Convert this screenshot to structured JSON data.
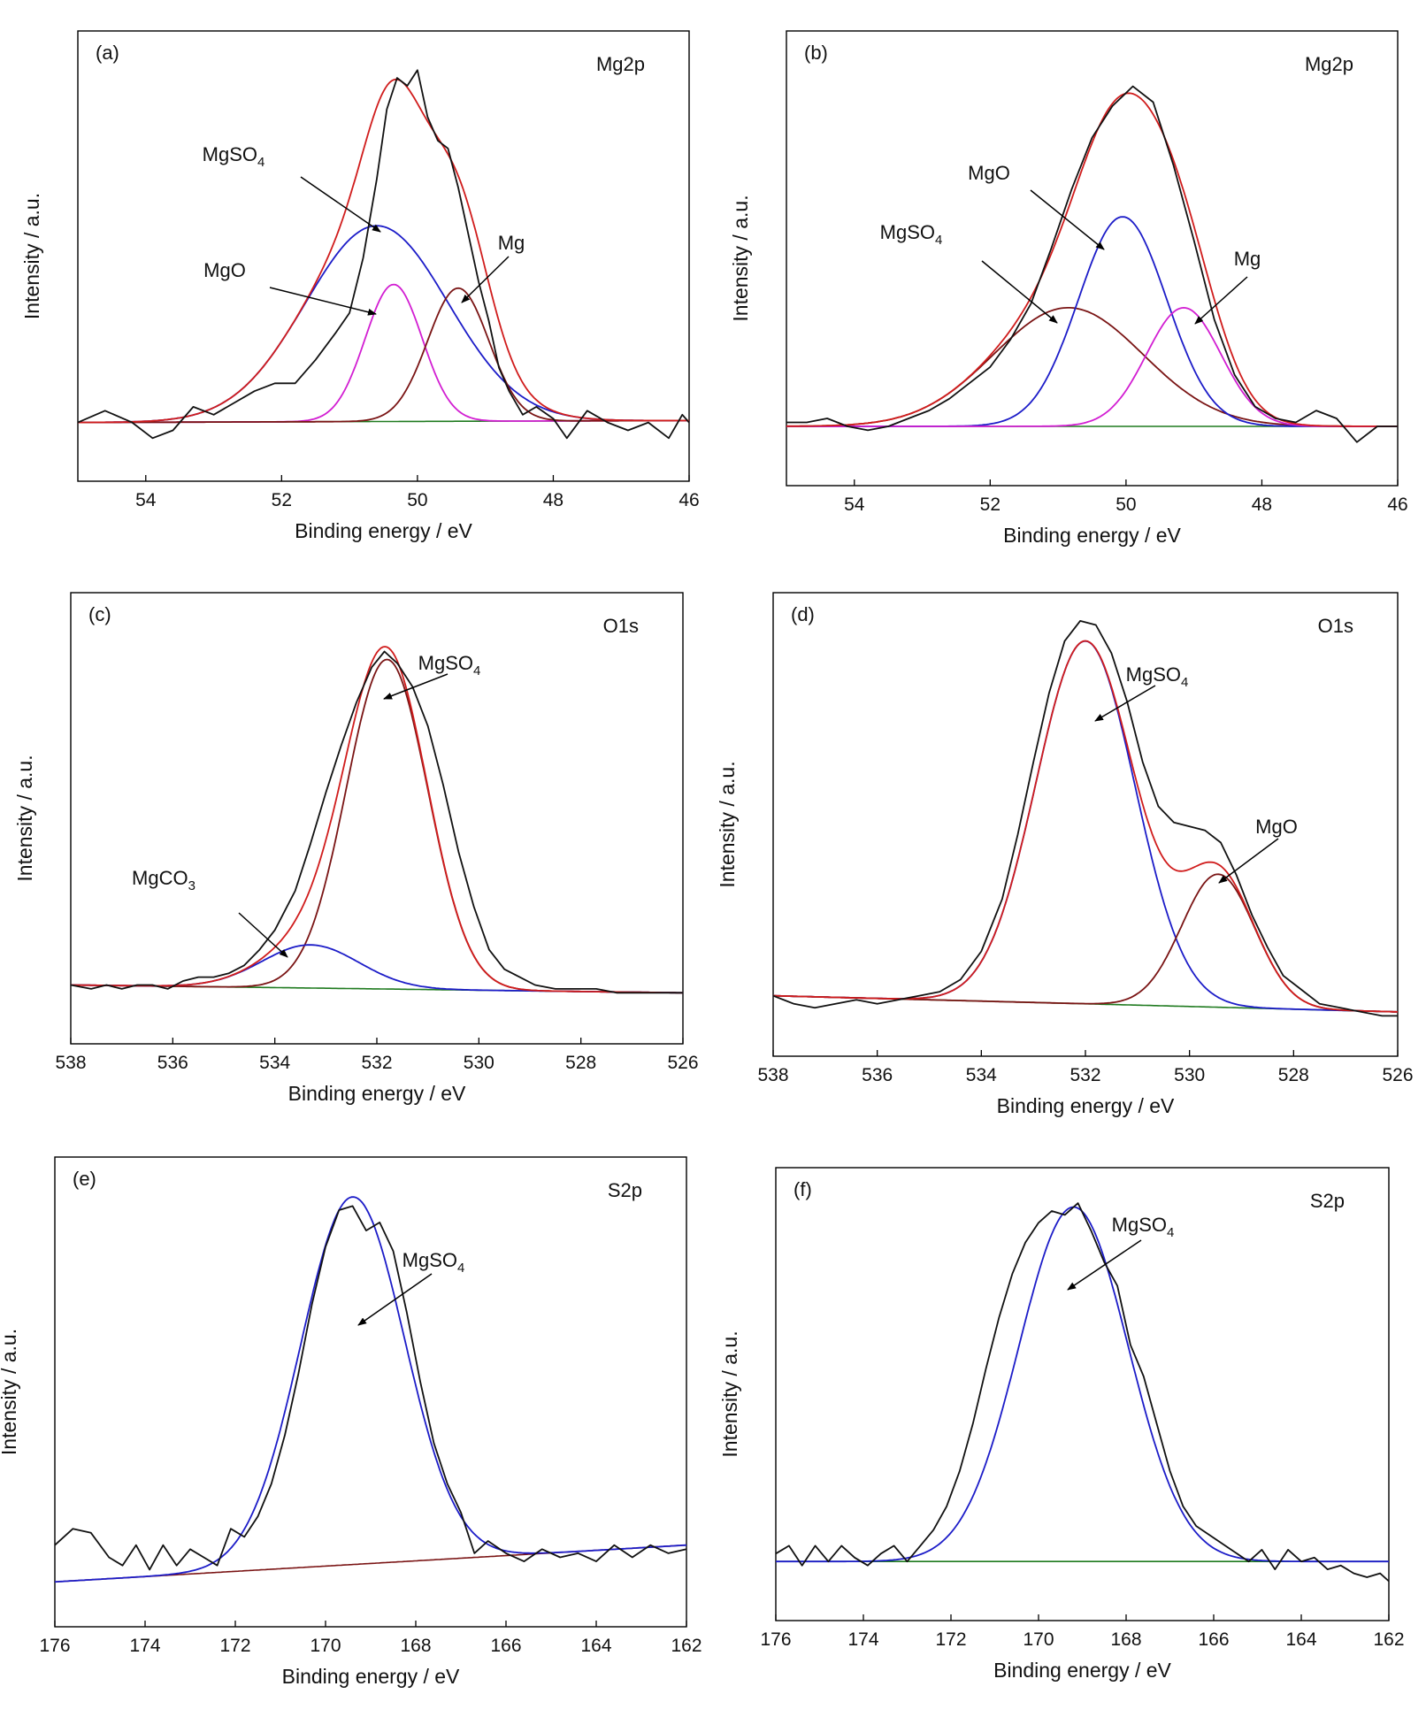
{
  "colors": {
    "raw": "#111111",
    "envelope": "#d01c1c",
    "blue": "#1c1cc8",
    "magenta": "#d21ed2",
    "brown": "#7a1414",
    "green": "#1f7a1f"
  },
  "chart_data": [
    {
      "id": "a",
      "type": "line",
      "panel_label": "(a)",
      "region": "Mg2p",
      "xlabel": "Binding energy / eV",
      "ylabel": "Intensity / a.u.",
      "xlim": [
        55,
        46
      ],
      "ylim": [
        -0.15,
        1.0
      ],
      "xticks": [
        54,
        52,
        50,
        48,
        46
      ],
      "components": [
        {
          "label": "MgSO",
          "label_sub": "4",
          "color": "blue",
          "center": 50.6,
          "height": 0.5,
          "sigma": 1.05
        },
        {
          "label": "MgO",
          "label_sub": "",
          "color": "magenta",
          "center": 50.35,
          "height": 0.35,
          "sigma": 0.42
        },
        {
          "label": "Mg",
          "label_sub": "",
          "color": "brown",
          "center": 49.4,
          "height": 0.34,
          "sigma": 0.45
        }
      ],
      "baseline": {
        "color": "green",
        "start": 0.0,
        "end": 0.005
      },
      "raw": [
        [
          55.0,
          0.0
        ],
        [
          54.6,
          0.03
        ],
        [
          54.2,
          0.0
        ],
        [
          53.9,
          -0.04
        ],
        [
          53.6,
          -0.02
        ],
        [
          53.3,
          0.04
        ],
        [
          53.0,
          0.02
        ],
        [
          52.7,
          0.05
        ],
        [
          52.4,
          0.08
        ],
        [
          52.1,
          0.1
        ],
        [
          51.8,
          0.1
        ],
        [
          51.5,
          0.16
        ],
        [
          51.2,
          0.23
        ],
        [
          51.0,
          0.28
        ],
        [
          50.8,
          0.42
        ],
        [
          50.6,
          0.62
        ],
        [
          50.45,
          0.8
        ],
        [
          50.3,
          0.88
        ],
        [
          50.15,
          0.86
        ],
        [
          50.0,
          0.9
        ],
        [
          49.85,
          0.78
        ],
        [
          49.7,
          0.72
        ],
        [
          49.55,
          0.7
        ],
        [
          49.4,
          0.6
        ],
        [
          49.25,
          0.48
        ],
        [
          49.1,
          0.36
        ],
        [
          48.95,
          0.26
        ],
        [
          48.8,
          0.14
        ],
        [
          48.65,
          0.08
        ],
        [
          48.45,
          0.02
        ],
        [
          48.25,
          0.04
        ],
        [
          48.0,
          0.01
        ],
        [
          47.8,
          -0.04
        ],
        [
          47.5,
          0.03
        ],
        [
          47.2,
          0.0
        ],
        [
          46.9,
          -0.02
        ],
        [
          46.6,
          0.0
        ],
        [
          46.3,
          -0.04
        ],
        [
          46.1,
          0.02
        ],
        [
          46.0,
          0.0
        ]
      ]
    },
    {
      "id": "b",
      "type": "line",
      "panel_label": "(b)",
      "region": "Mg2p",
      "xlabel": "Binding energy / eV",
      "ylabel": "Intensity / a.u.",
      "xlim": [
        55,
        46
      ],
      "ylim": [
        -0.15,
        1.0
      ],
      "xticks": [
        54,
        52,
        50,
        48,
        46
      ],
      "components": [
        {
          "label": "MgSO",
          "label_sub": "4",
          "color": "brown",
          "center": 50.85,
          "height": 0.3,
          "sigma": 1.1
        },
        {
          "label": "MgO",
          "label_sub": "",
          "color": "blue",
          "center": 50.05,
          "height": 0.53,
          "sigma": 0.65
        },
        {
          "label": "Mg",
          "label_sub": "",
          "color": "magenta",
          "center": 49.15,
          "height": 0.3,
          "sigma": 0.55
        }
      ],
      "baseline": {
        "color": "green",
        "start": 0.0,
        "end": 0.0
      },
      "raw": [
        [
          55.0,
          0.01
        ],
        [
          54.7,
          0.01
        ],
        [
          54.4,
          0.02
        ],
        [
          54.1,
          0.0
        ],
        [
          53.8,
          -0.01
        ],
        [
          53.5,
          0.0
        ],
        [
          53.2,
          0.02
        ],
        [
          52.9,
          0.04
        ],
        [
          52.6,
          0.07
        ],
        [
          52.3,
          0.11
        ],
        [
          52.0,
          0.15
        ],
        [
          51.7,
          0.22
        ],
        [
          51.4,
          0.31
        ],
        [
          51.1,
          0.45
        ],
        [
          50.8,
          0.6
        ],
        [
          50.5,
          0.73
        ],
        [
          50.2,
          0.81
        ],
        [
          49.9,
          0.86
        ],
        [
          49.6,
          0.82
        ],
        [
          49.3,
          0.66
        ],
        [
          49.0,
          0.47
        ],
        [
          48.7,
          0.27
        ],
        [
          48.4,
          0.13
        ],
        [
          48.1,
          0.05
        ],
        [
          47.8,
          0.02
        ],
        [
          47.5,
          0.01
        ],
        [
          47.2,
          0.04
        ],
        [
          46.9,
          0.02
        ],
        [
          46.6,
          -0.04
        ],
        [
          46.3,
          0.0
        ],
        [
          46.0,
          0.0
        ]
      ]
    },
    {
      "id": "c",
      "type": "line",
      "panel_label": "(c)",
      "region": "O1s",
      "xlabel": "Binding energy / eV",
      "ylabel": "Intensity / a.u.",
      "xlim": [
        538,
        526
      ],
      "ylim": [
        -0.15,
        1.0
      ],
      "xticks": [
        538,
        536,
        534,
        532,
        530,
        528,
        526
      ],
      "components": [
        {
          "label": "MgSO",
          "label_sub": "4",
          "color": "brown",
          "center": 531.8,
          "height": 0.84,
          "sigma": 0.8
        },
        {
          "label": "MgCO",
          "label_sub": "3",
          "color": "blue",
          "center": 533.3,
          "height": 0.11,
          "sigma": 0.95
        }
      ],
      "baseline": {
        "color": "green",
        "start": 0.0,
        "end": -0.02
      },
      "raw": [
        [
          538.0,
          0.0
        ],
        [
          537.6,
          -0.01
        ],
        [
          537.3,
          0.0
        ],
        [
          537.0,
          -0.01
        ],
        [
          536.7,
          0.0
        ],
        [
          536.4,
          0.0
        ],
        [
          536.1,
          -0.01
        ],
        [
          535.8,
          0.01
        ],
        [
          535.5,
          0.02
        ],
        [
          535.2,
          0.02
        ],
        [
          534.9,
          0.03
        ],
        [
          534.6,
          0.05
        ],
        [
          534.3,
          0.09
        ],
        [
          534.0,
          0.14
        ],
        [
          533.6,
          0.24
        ],
        [
          533.3,
          0.36
        ],
        [
          533.0,
          0.49
        ],
        [
          532.7,
          0.61
        ],
        [
          532.4,
          0.72
        ],
        [
          532.1,
          0.81
        ],
        [
          531.85,
          0.85
        ],
        [
          531.6,
          0.82
        ],
        [
          531.3,
          0.76
        ],
        [
          531.0,
          0.66
        ],
        [
          530.7,
          0.51
        ],
        [
          530.4,
          0.34
        ],
        [
          530.1,
          0.2
        ],
        [
          529.8,
          0.09
        ],
        [
          529.5,
          0.04
        ],
        [
          529.2,
          0.02
        ],
        [
          528.9,
          0.0
        ],
        [
          528.5,
          -0.01
        ],
        [
          528.1,
          -0.01
        ],
        [
          527.7,
          -0.01
        ],
        [
          527.3,
          -0.02
        ],
        [
          526.9,
          -0.02
        ],
        [
          526.5,
          -0.02
        ],
        [
          526.0,
          -0.02
        ]
      ]
    },
    {
      "id": "d",
      "type": "line",
      "panel_label": "(d)",
      "region": "O1s",
      "xlabel": "Binding energy / eV",
      "ylabel": "Intensity / a.u.",
      "xlim": [
        538,
        526
      ],
      "ylim": [
        -0.15,
        1.0
      ],
      "xticks": [
        538,
        536,
        534,
        532,
        530,
        528,
        526
      ],
      "components": [
        {
          "label": "MgSO",
          "label_sub": "4",
          "color": "blue",
          "center": 532.0,
          "height": 0.9,
          "sigma": 0.95
        },
        {
          "label": "MgO",
          "label_sub": "",
          "color": "brown",
          "center": 529.45,
          "height": 0.33,
          "sigma": 0.7
        }
      ],
      "baseline": {
        "color": "green",
        "start": 0.0,
        "end": -0.04
      },
      "raw": [
        [
          538.0,
          0.0
        ],
        [
          537.6,
          -0.02
        ],
        [
          537.2,
          -0.03
        ],
        [
          536.8,
          -0.02
        ],
        [
          536.4,
          -0.01
        ],
        [
          536.0,
          -0.02
        ],
        [
          535.6,
          -0.01
        ],
        [
          535.2,
          0.0
        ],
        [
          534.8,
          0.01
        ],
        [
          534.4,
          0.04
        ],
        [
          534.0,
          0.11
        ],
        [
          533.6,
          0.24
        ],
        [
          533.3,
          0.4
        ],
        [
          533.0,
          0.58
        ],
        [
          532.7,
          0.75
        ],
        [
          532.4,
          0.88
        ],
        [
          532.1,
          0.93
        ],
        [
          531.8,
          0.92
        ],
        [
          531.5,
          0.85
        ],
        [
          531.2,
          0.73
        ],
        [
          530.9,
          0.58
        ],
        [
          530.6,
          0.47
        ],
        [
          530.3,
          0.43
        ],
        [
          530.0,
          0.42
        ],
        [
          529.7,
          0.41
        ],
        [
          529.4,
          0.38
        ],
        [
          529.1,
          0.3
        ],
        [
          528.8,
          0.2
        ],
        [
          528.5,
          0.12
        ],
        [
          528.2,
          0.05
        ],
        [
          527.9,
          0.02
        ],
        [
          527.5,
          -0.02
        ],
        [
          527.1,
          -0.03
        ],
        [
          526.7,
          -0.04
        ],
        [
          526.3,
          -0.05
        ],
        [
          526.0,
          -0.05
        ]
      ]
    },
    {
      "id": "e",
      "type": "line",
      "panel_label": "(e)",
      "region": "S2p",
      "xlabel": "Binding energy / eV",
      "ylabel": "Intensity / a.u.",
      "xlim": [
        176,
        162
      ],
      "ylim": [
        -0.15,
        1.0
      ],
      "xticks": [
        176,
        174,
        172,
        170,
        168,
        166,
        164,
        162
      ],
      "components": [
        {
          "label": "MgSO",
          "label_sub": "4",
          "color": "blue",
          "center": 169.4,
          "height": 0.9,
          "sigma": 1.15
        }
      ],
      "baseline": {
        "color": "brown",
        "start": -0.04,
        "end": 0.05
      },
      "raw": [
        [
          176.0,
          0.05
        ],
        [
          175.6,
          0.09
        ],
        [
          175.2,
          0.08
        ],
        [
          174.8,
          0.02
        ],
        [
          174.5,
          0.0
        ],
        [
          174.2,
          0.05
        ],
        [
          173.9,
          -0.01
        ],
        [
          173.6,
          0.05
        ],
        [
          173.3,
          0.0
        ],
        [
          173.0,
          0.04
        ],
        [
          172.7,
          0.02
        ],
        [
          172.4,
          0.0
        ],
        [
          172.1,
          0.09
        ],
        [
          171.8,
          0.07
        ],
        [
          171.5,
          0.12
        ],
        [
          171.2,
          0.2
        ],
        [
          170.9,
          0.32
        ],
        [
          170.6,
          0.47
        ],
        [
          170.3,
          0.64
        ],
        [
          170.0,
          0.78
        ],
        [
          169.7,
          0.87
        ],
        [
          169.4,
          0.88
        ],
        [
          169.1,
          0.82
        ],
        [
          168.8,
          0.84
        ],
        [
          168.5,
          0.77
        ],
        [
          168.2,
          0.62
        ],
        [
          167.9,
          0.45
        ],
        [
          167.6,
          0.3
        ],
        [
          167.3,
          0.2
        ],
        [
          167.0,
          0.13
        ],
        [
          166.7,
          0.03
        ],
        [
          166.4,
          0.06
        ],
        [
          166.0,
          0.03
        ],
        [
          165.6,
          0.01
        ],
        [
          165.2,
          0.04
        ],
        [
          164.8,
          0.02
        ],
        [
          164.4,
          0.03
        ],
        [
          164.0,
          0.01
        ],
        [
          163.6,
          0.05
        ],
        [
          163.2,
          0.02
        ],
        [
          162.8,
          0.05
        ],
        [
          162.4,
          0.03
        ],
        [
          162.0,
          0.04
        ]
      ]
    },
    {
      "id": "f",
      "type": "line",
      "panel_label": "(f)",
      "region": "S2p",
      "xlabel": "Binding energy / eV",
      "ylabel": "Intensity / a.u.",
      "xlim": [
        176,
        162
      ],
      "ylim": [
        -0.15,
        1.0
      ],
      "xticks": [
        176,
        174,
        172,
        170,
        168,
        166,
        164,
        162
      ],
      "components": [
        {
          "label": "MgSO",
          "label_sub": "4",
          "color": "blue",
          "center": 169.2,
          "height": 0.9,
          "sigma": 1.25
        }
      ],
      "baseline": {
        "color": "green",
        "start": 0.0,
        "end": 0.0
      },
      "raw": [
        [
          176.0,
          0.02
        ],
        [
          175.7,
          0.04
        ],
        [
          175.4,
          -0.01
        ],
        [
          175.1,
          0.04
        ],
        [
          174.8,
          0.0
        ],
        [
          174.5,
          0.04
        ],
        [
          174.2,
          0.01
        ],
        [
          173.9,
          -0.01
        ],
        [
          173.6,
          0.02
        ],
        [
          173.3,
          0.04
        ],
        [
          173.0,
          0.0
        ],
        [
          172.7,
          0.04
        ],
        [
          172.4,
          0.08
        ],
        [
          172.1,
          0.14
        ],
        [
          171.8,
          0.23
        ],
        [
          171.5,
          0.35
        ],
        [
          171.2,
          0.49
        ],
        [
          170.9,
          0.62
        ],
        [
          170.6,
          0.73
        ],
        [
          170.3,
          0.81
        ],
        [
          170.0,
          0.86
        ],
        [
          169.7,
          0.89
        ],
        [
          169.4,
          0.88
        ],
        [
          169.1,
          0.91
        ],
        [
          168.8,
          0.84
        ],
        [
          168.5,
          0.76
        ],
        [
          168.2,
          0.7
        ],
        [
          167.9,
          0.55
        ],
        [
          167.6,
          0.47
        ],
        [
          167.3,
          0.35
        ],
        [
          167.0,
          0.23
        ],
        [
          166.7,
          0.14
        ],
        [
          166.4,
          0.09
        ],
        [
          166.0,
          0.06
        ],
        [
          165.6,
          0.03
        ],
        [
          165.2,
          0.0
        ],
        [
          164.9,
          0.03
        ],
        [
          164.6,
          -0.02
        ],
        [
          164.3,
          0.03
        ],
        [
          164.0,
          0.0
        ],
        [
          163.7,
          0.01
        ],
        [
          163.4,
          -0.02
        ],
        [
          163.1,
          -0.01
        ],
        [
          162.8,
          -0.03
        ],
        [
          162.5,
          -0.04
        ],
        [
          162.2,
          -0.03
        ],
        [
          162.0,
          -0.05
        ]
      ]
    }
  ]
}
